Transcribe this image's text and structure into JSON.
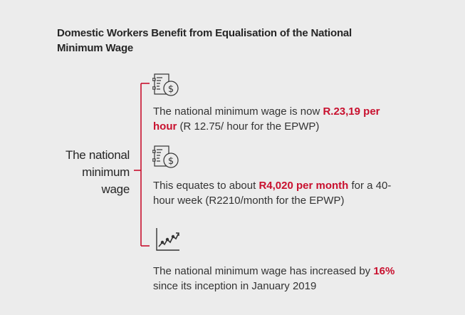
{
  "title_line1": "Domestic Workers Benefit from Equalisation of the National",
  "title_line2": "Minimum Wage",
  "hub": {
    "line1": "The national",
    "line2": "minimum",
    "line3": "wage"
  },
  "items": [
    {
      "icon": "money-document-icon",
      "pre": "The national minimum wage is now ",
      "highlight": "R.23,19 per hour",
      "post": " (R 12.75/ hour for the EPWP)"
    },
    {
      "icon": "money-document-icon",
      "pre": "This equates to about ",
      "highlight": "R4,020 per month",
      "post": " for  a 40-hour week (R2210/month for the EPWP)"
    },
    {
      "icon": "line-chart-icon",
      "pre": "The national minimum wage has increased by ",
      "highlight": "16%",
      "post": " since its inception in January 2019"
    }
  ],
  "colors": {
    "accent": "#c8102e",
    "background": "#ececec",
    "text": "#333333"
  }
}
